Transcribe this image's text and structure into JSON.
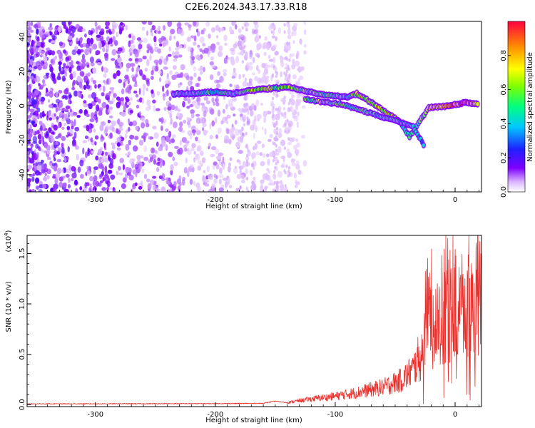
{
  "title": "C2E6.2024.343.17.33.R18",
  "colors": {
    "snr_line": "#e8322e",
    "spectrogram_noise": "#7a2ee0",
    "axis": "#000000"
  },
  "chart_data": [
    {
      "type": "heatmap",
      "xlabel": "Height of straight line (km)",
      "ylabel": "Frequency (Hz)",
      "xlim": [
        -357,
        22
      ],
      "ylim": [
        -50,
        49
      ],
      "xticks": [
        "-300",
        "-200",
        "-100",
        "0"
      ],
      "xtick_values": [
        -300,
        -200,
        -100,
        0
      ],
      "yticks": [
        "40",
        "20",
        "0",
        "-20",
        "-40"
      ],
      "ytick_values": [
        40,
        20,
        0,
        -20,
        -40
      ],
      "colorbar": {
        "label": "Normalized spectral amplitude",
        "range": [
          0.0,
          1.0
        ],
        "ticks": [
          "0.0",
          "0.2",
          "0.4",
          "0.6",
          "0.8"
        ],
        "tick_values": [
          0.0,
          0.2,
          0.4,
          0.6,
          0.8
        ],
        "colormap": [
          "#ffffff",
          "#7f00ff",
          "#0000ff",
          "#00d0ff",
          "#00ff60",
          "#c0ff00",
          "#ffe000",
          "#ff8000",
          "#ff0000"
        ]
      },
      "signal_track": [
        {
          "x": -235,
          "y": 7,
          "amp": 0.45
        },
        {
          "x": -222,
          "y": 7,
          "amp": 0.45
        },
        {
          "x": -200,
          "y": 8,
          "amp": 0.45
        },
        {
          "x": -185,
          "y": 7,
          "amp": 0.5
        },
        {
          "x": -170,
          "y": 9,
          "amp": 0.55
        },
        {
          "x": -155,
          "y": 10,
          "amp": 0.6
        },
        {
          "x": -138,
          "y": 11,
          "amp": 0.6
        },
        {
          "x": -122,
          "y": 8,
          "amp": 0.5
        },
        {
          "x": -105,
          "y": 6,
          "amp": 0.55
        },
        {
          "x": -90,
          "y": 5,
          "amp": 0.45
        },
        {
          "x": -82,
          "y": 7,
          "amp": 0.7
        },
        {
          "x": -70,
          "y": 2,
          "amp": 0.6
        },
        {
          "x": -55,
          "y": -5,
          "amp": 0.7
        },
        {
          "x": -45,
          "y": -10,
          "amp": 0.55
        },
        {
          "x": -38,
          "y": -18,
          "amp": 0.45
        },
        {
          "x": -22,
          "y": -1,
          "amp": 0.6
        },
        {
          "x": -5,
          "y": 0,
          "amp": 0.9
        },
        {
          "x": 10,
          "y": 2,
          "amp": 0.85
        },
        {
          "x": 20,
          "y": 1,
          "amp": 0.8
        }
      ],
      "secondary_track": [
        {
          "x": -125,
          "y": 4,
          "amp": 0.55
        },
        {
          "x": -110,
          "y": 2,
          "amp": 0.6
        },
        {
          "x": -95,
          "y": 1,
          "amp": 0.55
        },
        {
          "x": -35,
          "y": -12,
          "amp": 0.4
        },
        {
          "x": -25,
          "y": -24,
          "amp": 0.35
        }
      ],
      "noise_region_x": [
        -357,
        -135
      ]
    },
    {
      "type": "line",
      "xlabel": "Height of straight line (km)",
      "ylabel": "SNR (10 * v/v)",
      "y_multiplier": "(x10",
      "y_multiplier_exp": "4",
      "y_multiplier_close": ")",
      "xlim": [
        -357,
        22
      ],
      "ylim": [
        -0.02,
        1.68
      ],
      "xticks": [
        "-300",
        "-200",
        "-100",
        "0"
      ],
      "xtick_values": [
        -300,
        -200,
        -100,
        0
      ],
      "yticks": [
        "0.0",
        "0.5",
        "1.0",
        "1.5"
      ],
      "ytick_values": [
        0.0,
        0.5,
        1.0,
        1.5
      ],
      "series": [
        {
          "envelope": [
            {
              "x": -357,
              "y": 0.01
            },
            {
              "x": -200,
              "y": 0.015
            },
            {
              "x": -160,
              "y": 0.02
            },
            {
              "x": -150,
              "y": 0.06
            },
            {
              "x": -140,
              "y": 0.03
            },
            {
              "x": -120,
              "y": 0.08
            },
            {
              "x": -100,
              "y": 0.12
            },
            {
              "x": -80,
              "y": 0.18
            },
            {
              "x": -60,
              "y": 0.25
            },
            {
              "x": -45,
              "y": 0.35
            },
            {
              "x": -35,
              "y": 0.5
            },
            {
              "x": -28,
              "y": 0.75
            },
            {
              "x": -22,
              "y": 1.05
            },
            {
              "x": -15,
              "y": 1.15
            },
            {
              "x": -5,
              "y": 1.25
            },
            {
              "x": 5,
              "y": 1.3
            },
            {
              "x": 12,
              "y": 1.4
            },
            {
              "x": 18,
              "y": 1.5
            },
            {
              "x": 22,
              "y": 1.55
            }
          ]
        }
      ]
    }
  ]
}
